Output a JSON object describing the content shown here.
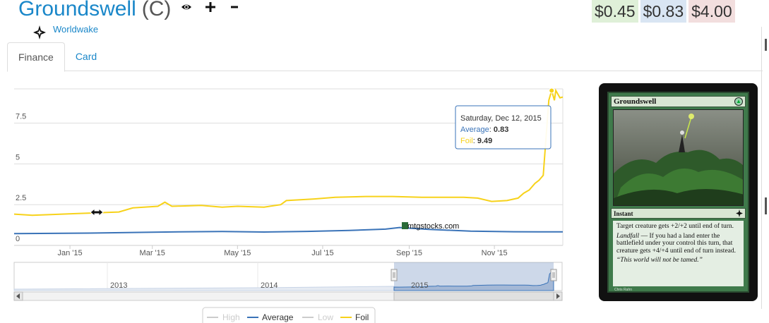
{
  "card": {
    "name": "Groundswell",
    "rarity": "(C)",
    "set": "Worldwake"
  },
  "actions": {
    "view_icon": "eye-icon",
    "add_icon": "plus-icon",
    "remove_icon": "minus-icon"
  },
  "prices": [
    {
      "value": "$0.45",
      "color": "#dff0d8"
    },
    {
      "value": "$0.83",
      "color": "#d9e5f3"
    },
    {
      "value": "$4.00",
      "color": "#f2dede"
    }
  ],
  "tabs": [
    {
      "label": "Finance",
      "active": true
    },
    {
      "label": "Card",
      "active": false
    }
  ],
  "chart_data": {
    "type": "line",
    "ylim": [
      0,
      9.6
    ],
    "yticks": [
      "0",
      "2.5",
      "5",
      "7.5"
    ],
    "ytick_values": [
      0,
      2.5,
      5,
      7.5
    ],
    "xticks": [
      "Jan '15",
      "Mar '15",
      "May '15",
      "Jul '15",
      "Sep '15",
      "Nov '15"
    ],
    "xtick_dates": [
      "2015-01-01",
      "2015-03-01",
      "2015-05-01",
      "2015-07-01",
      "2015-09-01",
      "2015-11-01"
    ],
    "x_range": [
      "2014-11-22",
      "2015-12-20"
    ],
    "series": [
      {
        "name": "Foil",
        "color": "#f7d21a",
        "points": [
          [
            "2014-11-22",
            1.92
          ],
          [
            "2014-12-05",
            1.85
          ],
          [
            "2014-12-20",
            1.9
          ],
          [
            "2015-01-05",
            1.95
          ],
          [
            "2015-01-20",
            2.0
          ],
          [
            "2015-02-05",
            2.05
          ],
          [
            "2015-02-15",
            2.3
          ],
          [
            "2015-03-05",
            2.4
          ],
          [
            "2015-03-10",
            2.65
          ],
          [
            "2015-03-15",
            2.4
          ],
          [
            "2015-04-05",
            2.45
          ],
          [
            "2015-04-20",
            2.35
          ],
          [
            "2015-05-01",
            2.4
          ],
          [
            "2015-05-20",
            2.35
          ],
          [
            "2015-06-01",
            2.5
          ],
          [
            "2015-06-05",
            2.75
          ],
          [
            "2015-06-25",
            2.85
          ],
          [
            "2015-07-10",
            2.95
          ],
          [
            "2015-08-01",
            3.0
          ],
          [
            "2015-08-20",
            3.0
          ],
          [
            "2015-09-10",
            2.95
          ],
          [
            "2015-10-10",
            2.95
          ],
          [
            "2015-10-20",
            2.9
          ],
          [
            "2015-10-30",
            2.7
          ],
          [
            "2015-11-10",
            2.75
          ],
          [
            "2015-11-18",
            2.9
          ],
          [
            "2015-11-22",
            3.2
          ],
          [
            "2015-11-26",
            3.4
          ],
          [
            "2015-11-30",
            3.8
          ],
          [
            "2015-12-03",
            4.0
          ],
          [
            "2015-12-06",
            4.3
          ],
          [
            "2015-12-09",
            7.8
          ],
          [
            "2015-12-10",
            8.9
          ],
          [
            "2015-12-12",
            9.49
          ],
          [
            "2015-12-14",
            8.9
          ],
          [
            "2015-12-15",
            9.5
          ],
          [
            "2015-12-18",
            9.05
          ],
          [
            "2015-12-20",
            9.1
          ]
        ]
      },
      {
        "name": "Average",
        "color": "#3a73b8",
        "points": [
          [
            "2014-11-22",
            0.72
          ],
          [
            "2014-12-20",
            0.74
          ],
          [
            "2015-01-20",
            0.76
          ],
          [
            "2015-02-20",
            0.8
          ],
          [
            "2015-03-20",
            0.83
          ],
          [
            "2015-04-20",
            0.85
          ],
          [
            "2015-05-20",
            0.82
          ],
          [
            "2015-06-20",
            0.86
          ],
          [
            "2015-07-20",
            0.92
          ],
          [
            "2015-08-15",
            1.0
          ],
          [
            "2015-08-25",
            1.1
          ],
          [
            "2015-09-15",
            0.98
          ],
          [
            "2015-10-15",
            0.88
          ],
          [
            "2015-11-15",
            0.84
          ],
          [
            "2015-12-12",
            0.83
          ],
          [
            "2015-12-20",
            0.83
          ]
        ]
      }
    ],
    "tooltip": {
      "date": "Saturday, Dec 12, 2015",
      "rows": [
        {
          "name": "Average",
          "value": "0.83",
          "color": "#3a73b8"
        },
        {
          "name": "Foil",
          "value": "9.49",
          "color": "#f7d21a"
        }
      ]
    },
    "watermark": "mtgstocks.com",
    "navigator": {
      "labels": [
        "2013",
        "2014",
        "2015"
      ]
    },
    "legend": [
      {
        "name": "High",
        "color": "#cccccc",
        "enabled": false
      },
      {
        "name": "Average",
        "color": "#3a73b8",
        "enabled": true
      },
      {
        "name": "Low",
        "color": "#cccccc",
        "enabled": false
      },
      {
        "name": "Foil",
        "color": "#f7d21a",
        "enabled": true
      }
    ]
  },
  "card_image": {
    "title": "Groundswell",
    "mana_symbol": "green-mana-icon",
    "type_line": "Instant",
    "rules_1": "Target creature gets +2/+2 until end of turn.",
    "rules_2_keyword": "Landfall",
    "rules_2": " — If you had a land enter the battlefield under your control this turn, that creature gets +4/+4 until end of turn instead.",
    "flavor": "“This world will not be tamed.”",
    "artist": "Chris Rahn"
  }
}
